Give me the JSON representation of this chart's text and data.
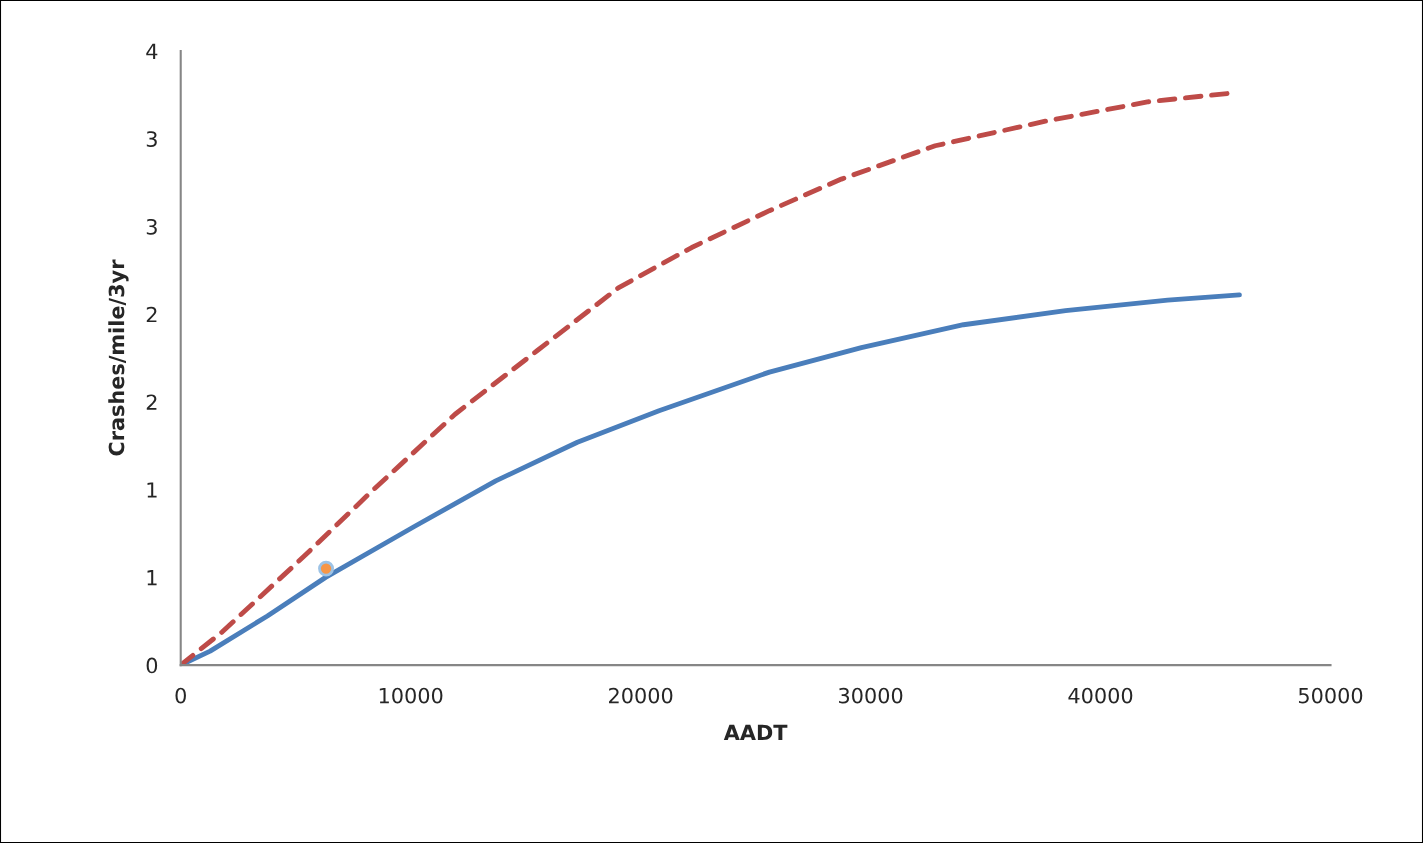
{
  "chart_data": {
    "type": "line",
    "xlabel": "AADT",
    "ylabel": "Crashes/mile/3yr",
    "xlim": [
      0,
      50000
    ],
    "xticks": [
      0,
      10000,
      20000,
      30000,
      40000,
      50000
    ],
    "ylim": [
      0,
      3.5
    ],
    "yticks": [
      0,
      {
        "value": 0.5,
        "label": "1"
      },
      1,
      {
        "value": 1.5,
        "label": "2"
      },
      2,
      {
        "value": 2.5,
        "label": "3"
      },
      3,
      {
        "value": 3.5,
        "label": "4"
      }
    ],
    "grid": false,
    "legend": false,
    "series": [
      {
        "color": "#4a7ebb",
        "line_style": "solid",
        "marker": "none",
        "x": [
          0,
          1280,
          3770,
          6300,
          10160,
          13700,
          17250,
          20800,
          25600,
          29600,
          34040,
          38480,
          42920,
          46040
        ],
        "values": [
          0,
          0.08,
          0.28,
          0.5,
          0.79,
          1.05,
          1.27,
          1.45,
          1.67,
          1.81,
          1.94,
          2.02,
          2.08,
          2.11
        ]
      },
      {
        "color": "#be4b48",
        "line_style": "dashed",
        "marker": "none",
        "x": [
          0,
          1810,
          5360,
          8380,
          11930,
          15480,
          19030,
          22220,
          25600,
          28730,
          32810,
          37600,
          42040,
          45680
        ],
        "values": [
          0,
          0.19,
          0.62,
          1.0,
          1.43,
          1.79,
          2.15,
          2.38,
          2.59,
          2.77,
          2.96,
          3.1,
          3.21,
          3.26
        ]
      },
      {
        "type": "scatter",
        "color": "#f79646",
        "marker": "circle",
        "x": [
          6320
        ],
        "values": [
          0.55
        ]
      }
    ]
  }
}
